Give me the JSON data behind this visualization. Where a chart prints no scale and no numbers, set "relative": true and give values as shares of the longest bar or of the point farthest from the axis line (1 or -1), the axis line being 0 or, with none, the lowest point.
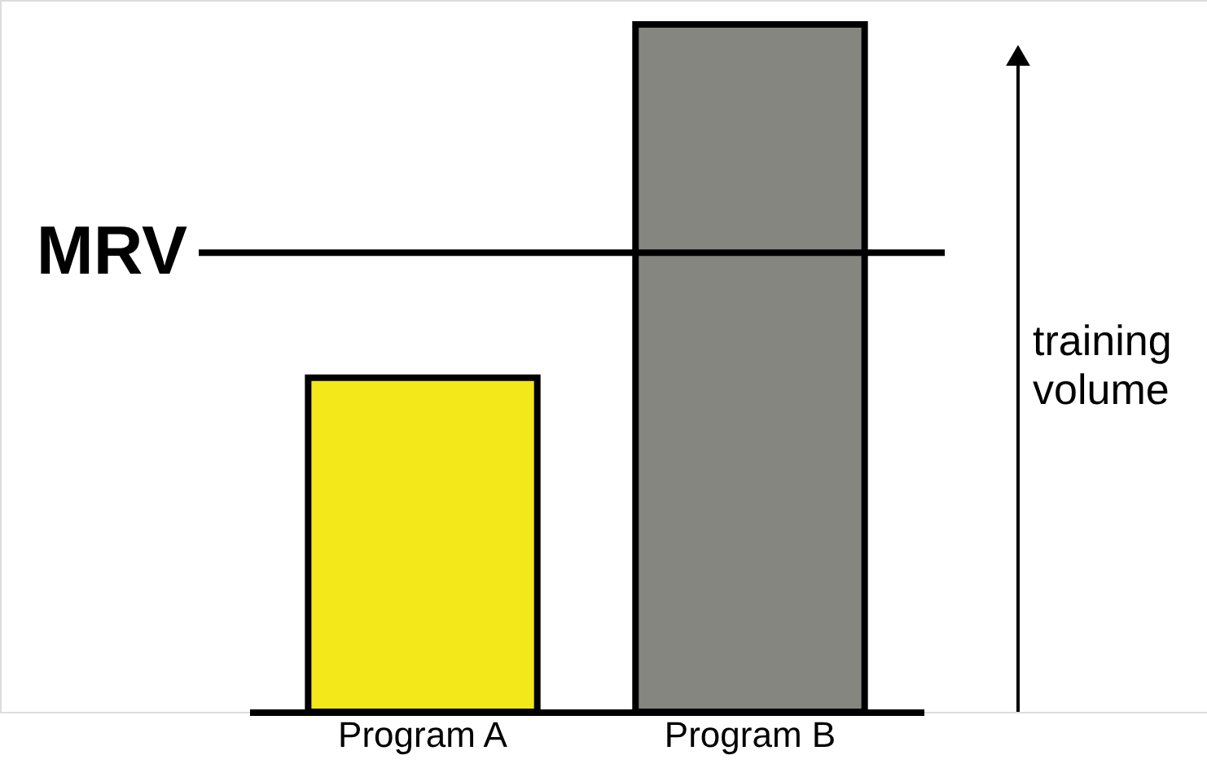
{
  "chart_data": {
    "type": "bar",
    "relative": true,
    "ylabel": "training volume",
    "categories": [
      "Program A",
      "Program B"
    ],
    "values": [
      0.486,
      1
    ],
    "colors": [
      "#f2e81a",
      "#868680"
    ],
    "ref_lines": [
      {
        "axis": "y",
        "value": 0.668,
        "label": "MRV"
      }
    ],
    "grid": false
  }
}
